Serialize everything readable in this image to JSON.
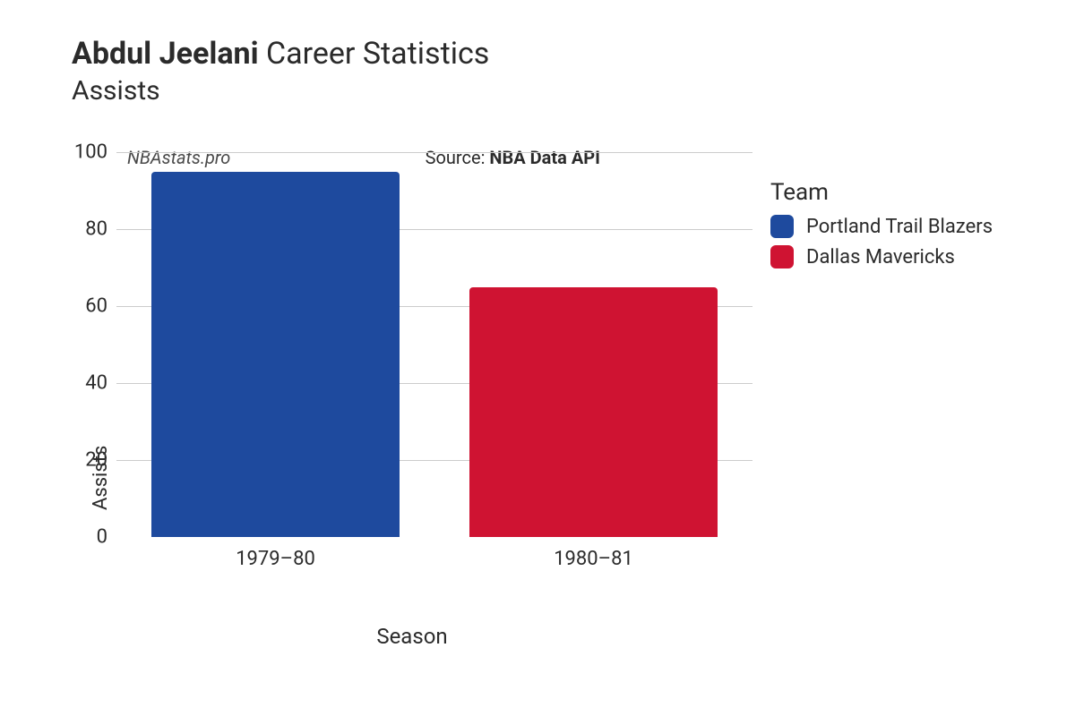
{
  "title": {
    "bold": "Abdul Jeelani",
    "rest": "Career Statistics",
    "subtitle": "Assists"
  },
  "watermark": "NBAstats.pro",
  "source": {
    "prefix": "Source: ",
    "name": "NBA Data API"
  },
  "chart": {
    "type": "bar",
    "ylabel": "Assists",
    "xlabel": "Season",
    "ylim": [
      0,
      100
    ],
    "yticks": [
      0,
      20,
      40,
      60,
      80,
      100
    ],
    "categories": [
      "1979–80",
      "1980–81"
    ],
    "values": [
      95,
      65
    ],
    "bar_colors": [
      "#1e4a9e",
      "#cf1332"
    ],
    "bar_width": 0.78,
    "background_color": "#ffffff",
    "grid_color": "#cccccc",
    "bar_border_radius": 4,
    "tick_fontsize": 22,
    "label_fontsize": 22,
    "xlabel_fontsize": 24,
    "title_fontsize": 34,
    "subtitle_fontsize": 30
  },
  "legend": {
    "title": "Team",
    "items": [
      {
        "label": "Portland Trail Blazers",
        "color": "#1e4a9e"
      },
      {
        "label": "Dallas Mavericks",
        "color": "#cf1332"
      }
    ],
    "title_fontsize": 26,
    "label_fontsize": 22,
    "swatch_radius": 6
  }
}
